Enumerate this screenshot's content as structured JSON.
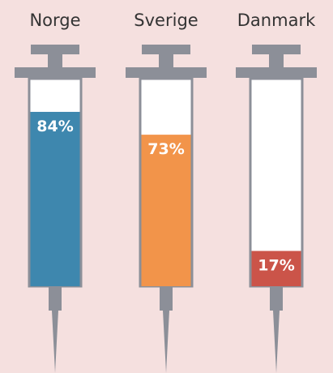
{
  "chart_data": {
    "type": "bar",
    "categories": [
      "Norge",
      "Sverige",
      "Danmark"
    ],
    "values": [
      84,
      73,
      17
    ],
    "value_labels": [
      "84%",
      "73%",
      "17%"
    ],
    "colors": [
      "#3e87ae",
      "#f2944a",
      "#cb5449"
    ],
    "ylim": [
      0,
      100
    ]
  }
}
